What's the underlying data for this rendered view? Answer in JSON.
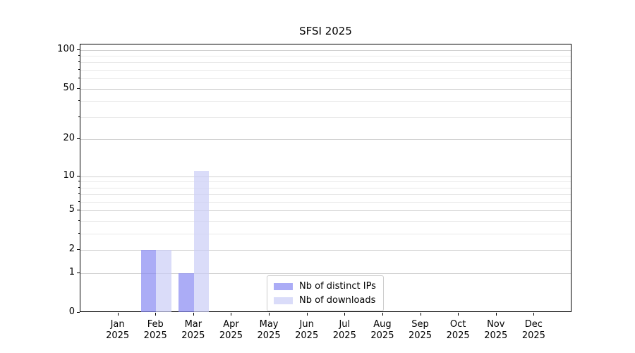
{
  "figure": {
    "background": "#ffffff"
  },
  "chart_data": {
    "type": "bar",
    "title": "SFSI 2025",
    "categories": [
      "Jan",
      "Feb",
      "Mar",
      "Apr",
      "May",
      "Jun",
      "Jul",
      "Aug",
      "Sep",
      "Oct",
      "Nov",
      "Dec"
    ],
    "category_year": "2025",
    "series": [
      {
        "name": "Nb of distinct IPs",
        "color": "#8889f2",
        "alpha": 0.7,
        "values": [
          0,
          2,
          1,
          0,
          0,
          0,
          0,
          0,
          0,
          0,
          0,
          0
        ]
      },
      {
        "name": "Nb of downloads",
        "color": "#cacdf7",
        "alpha": 0.7,
        "values": [
          0,
          2,
          11,
          0,
          0,
          0,
          0,
          0,
          0,
          0,
          0,
          0
        ]
      }
    ],
    "xlabel": "",
    "ylabel": "",
    "yscale": "log1p",
    "ylim": [
      0,
      110
    ],
    "y_major_ticks": [
      0,
      1,
      2,
      5,
      10,
      20,
      50,
      100
    ],
    "y_minor_ticks": [
      3,
      4,
      6,
      7,
      8,
      9,
      30,
      40,
      60,
      70,
      80,
      90
    ],
    "grid": "horizontal",
    "grid_major_color": "#d0d0d0",
    "grid_minor_color": "#e9e9e9",
    "legend_position": "lower center",
    "legend_border_color": "#cccccc"
  }
}
